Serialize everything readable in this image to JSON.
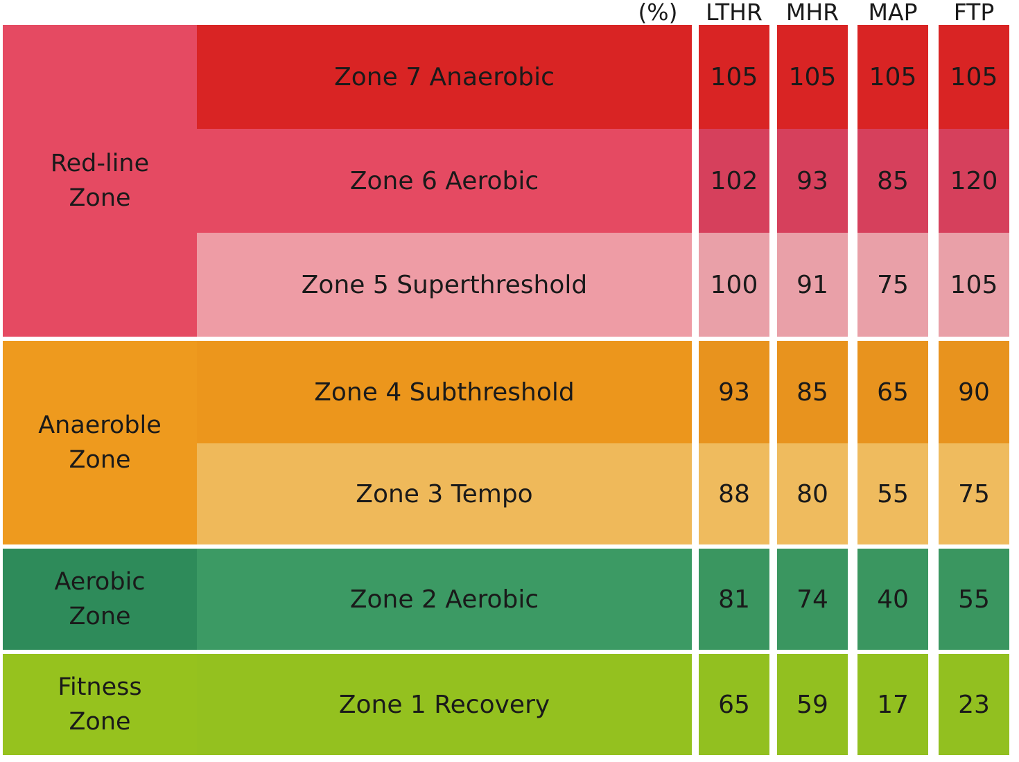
{
  "chart_data": {
    "type": "table",
    "unit_label": "(%)",
    "columns": [
      "LTHR",
      "MHR",
      "MAP",
      "FTP"
    ],
    "groups": [
      {
        "label": "Red-line\nZone",
        "color": "#e54a62",
        "rows": [
          0,
          1,
          2
        ]
      },
      {
        "label": "Anaeroble\nZone",
        "color": "#ee9a1e",
        "rows": [
          3,
          4
        ]
      },
      {
        "label": "Aerobic\nZone",
        "color": "#2e8b5a",
        "rows": [
          5
        ]
      },
      {
        "label": "Fitness\nZone",
        "color": "#96c21e",
        "rows": [
          6
        ]
      }
    ],
    "rows": [
      {
        "zone": "Zone 7 Anaerobic",
        "values": [
          105,
          105,
          105,
          105
        ],
        "color": "#d92424",
        "value_color": "#d92424"
      },
      {
        "zone": "Zone 6 Aerobic",
        "values": [
          102,
          93,
          85,
          120
        ],
        "color": "#e54a62",
        "value_color": "#d6405c"
      },
      {
        "zone": "Zone 5 Superthreshold",
        "values": [
          100,
          91,
          75,
          105
        ],
        "color": "#ee9ca5",
        "value_color": "#e9a0a8"
      },
      {
        "zone": "Zone 4 Subthreshold",
        "values": [
          93,
          85,
          65,
          90
        ],
        "color": "#ec961c",
        "value_color": "#e8931e"
      },
      {
        "zone": "Zone 3 Tempo",
        "values": [
          88,
          80,
          55,
          75
        ],
        "color": "#efb95a",
        "value_color": "#efbb5e"
      },
      {
        "zone": "Zone 2 Aerobic",
        "values": [
          81,
          74,
          40,
          55
        ],
        "color": "#3c9a64",
        "value_color": "#3a9660"
      },
      {
        "zone": "Zone 1 Recovery",
        "values": [
          65,
          59,
          17,
          23
        ],
        "color": "#94c11f",
        "value_color": "#92c020"
      }
    ]
  }
}
